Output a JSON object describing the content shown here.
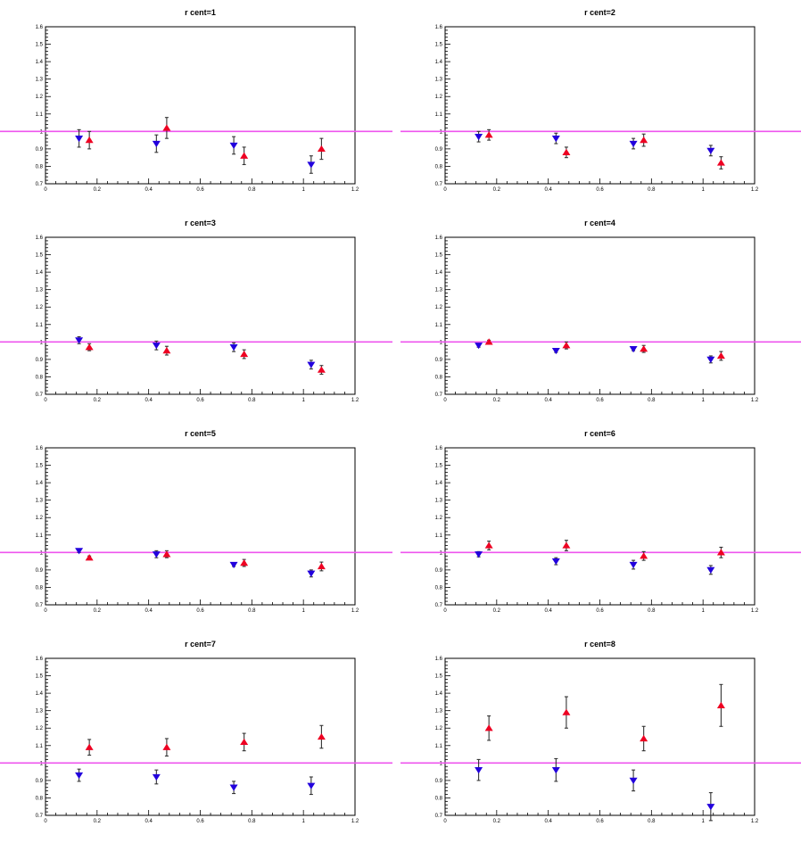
{
  "chart_data": [
    {
      "type": "scatter",
      "title": "r cent=1",
      "xlim": [
        0,
        1.2
      ],
      "ylim": [
        0.7,
        1.6
      ],
      "reference_y": 1.0,
      "xticks": [
        "0",
        "0.2",
        "0.4",
        "0.6",
        "0.8",
        "1",
        "1.2"
      ],
      "yticks": [
        "0.7",
        "0.8",
        "0.9",
        "1",
        "1.1",
        "1.2",
        "1.3",
        "1.4",
        "1.5",
        "1.6"
      ],
      "series": [
        {
          "marker": "down-triangle",
          "color": "#2200dd",
          "points": [
            {
              "x": 0.13,
              "y": 0.96,
              "err": 0.05
            },
            {
              "x": 0.43,
              "y": 0.93,
              "err": 0.05
            },
            {
              "x": 0.73,
              "y": 0.92,
              "err": 0.05
            },
            {
              "x": 1.03,
              "y": 0.81,
              "err": 0.05
            }
          ]
        },
        {
          "marker": "up-triangle",
          "color": "#ee0022",
          "points": [
            {
              "x": 0.17,
              "y": 0.95,
              "err": 0.05
            },
            {
              "x": 0.47,
              "y": 1.02,
              "err": 0.06
            },
            {
              "x": 0.77,
              "y": 0.86,
              "err": 0.05
            },
            {
              "x": 1.07,
              "y": 0.9,
              "err": 0.06
            }
          ]
        }
      ]
    },
    {
      "type": "scatter",
      "title": "r cent=2",
      "xlim": [
        0,
        1.2
      ],
      "ylim": [
        0.7,
        1.6
      ],
      "reference_y": 1.0,
      "xticks": [
        "0",
        "0.2",
        "0.4",
        "0.6",
        "0.8",
        "1",
        "1.2"
      ],
      "yticks": [
        "0.7",
        "0.8",
        "0.9",
        "1",
        "1.1",
        "1.2",
        "1.3",
        "1.4",
        "1.5",
        "1.6"
      ],
      "series": [
        {
          "marker": "down-triangle",
          "color": "#2200dd",
          "points": [
            {
              "x": 0.13,
              "y": 0.97,
              "err": 0.03
            },
            {
              "x": 0.43,
              "y": 0.96,
              "err": 0.03
            },
            {
              "x": 0.73,
              "y": 0.93,
              "err": 0.03
            },
            {
              "x": 1.03,
              "y": 0.89,
              "err": 0.03
            }
          ]
        },
        {
          "marker": "up-triangle",
          "color": "#ee0022",
          "points": [
            {
              "x": 0.17,
              "y": 0.98,
              "err": 0.03
            },
            {
              "x": 0.47,
              "y": 0.88,
              "err": 0.03
            },
            {
              "x": 0.77,
              "y": 0.95,
              "err": 0.035
            },
            {
              "x": 1.07,
              "y": 0.82,
              "err": 0.035
            }
          ]
        }
      ]
    },
    {
      "type": "scatter",
      "title": "r cent=3",
      "xlim": [
        0,
        1.2
      ],
      "ylim": [
        0.7,
        1.6
      ],
      "reference_y": 1.0,
      "xticks": [
        "0",
        "0.2",
        "0.4",
        "0.6",
        "0.8",
        "1",
        "1.2"
      ],
      "yticks": [
        "0.7",
        "0.8",
        "0.9",
        "1",
        "1.1",
        "1.2",
        "1.3",
        "1.4",
        "1.5",
        "1.6"
      ],
      "series": [
        {
          "marker": "down-triangle",
          "color": "#2200dd",
          "points": [
            {
              "x": 0.13,
              "y": 1.01,
              "err": 0.02
            },
            {
              "x": 0.43,
              "y": 0.98,
              "err": 0.025
            },
            {
              "x": 0.73,
              "y": 0.97,
              "err": 0.025
            },
            {
              "x": 1.03,
              "y": 0.87,
              "err": 0.025
            }
          ]
        },
        {
          "marker": "up-triangle",
          "color": "#ee0022",
          "points": [
            {
              "x": 0.17,
              "y": 0.97,
              "err": 0.02
            },
            {
              "x": 0.47,
              "y": 0.95,
              "err": 0.025
            },
            {
              "x": 0.77,
              "y": 0.93,
              "err": 0.025
            },
            {
              "x": 1.07,
              "y": 0.84,
              "err": 0.025
            }
          ]
        }
      ]
    },
    {
      "type": "scatter",
      "title": "r cent=4",
      "xlim": [
        0,
        1.2
      ],
      "ylim": [
        0.7,
        1.6
      ],
      "reference_y": 1.0,
      "xticks": [
        "0",
        "0.2",
        "0.4",
        "0.6",
        "0.8",
        "1",
        "1.2"
      ],
      "yticks": [
        "0.7",
        "0.8",
        "0.9",
        "1",
        "1.1",
        "1.2",
        "1.3",
        "1.4",
        "1.5",
        "1.6"
      ],
      "series": [
        {
          "marker": "down-triangle",
          "color": "#2200dd",
          "points": [
            {
              "x": 0.13,
              "y": 0.98,
              "err": 0.01
            },
            {
              "x": 0.43,
              "y": 0.95,
              "err": 0.01
            },
            {
              "x": 0.73,
              "y": 0.96,
              "err": 0.01
            },
            {
              "x": 1.03,
              "y": 0.9,
              "err": 0.02
            }
          ]
        },
        {
          "marker": "up-triangle",
          "color": "#ee0022",
          "points": [
            {
              "x": 0.17,
              "y": 1.0,
              "err": 0.01
            },
            {
              "x": 0.47,
              "y": 0.98,
              "err": 0.02
            },
            {
              "x": 0.77,
              "y": 0.96,
              "err": 0.02
            },
            {
              "x": 1.07,
              "y": 0.92,
              "err": 0.025
            }
          ]
        }
      ]
    },
    {
      "type": "scatter",
      "title": "r cent=5",
      "xlim": [
        0,
        1.2
      ],
      "ylim": [
        0.7,
        1.6
      ],
      "reference_y": 1.0,
      "xticks": [
        "0",
        "0.2",
        "0.4",
        "0.6",
        "0.8",
        "1",
        "1.2"
      ],
      "yticks": [
        "0.7",
        "0.8",
        "0.9",
        "1",
        "1.1",
        "1.2",
        "1.3",
        "1.4",
        "1.5",
        "1.6"
      ],
      "series": [
        {
          "marker": "down-triangle",
          "color": "#2200dd",
          "points": [
            {
              "x": 0.13,
              "y": 1.01,
              "err": 0.01
            },
            {
              "x": 0.43,
              "y": 0.99,
              "err": 0.02
            },
            {
              "x": 0.73,
              "y": 0.93,
              "err": 0.01
            },
            {
              "x": 1.03,
              "y": 0.88,
              "err": 0.02
            }
          ]
        },
        {
          "marker": "up-triangle",
          "color": "#ee0022",
          "points": [
            {
              "x": 0.17,
              "y": 0.97,
              "err": 0.01
            },
            {
              "x": 0.47,
              "y": 0.99,
              "err": 0.02
            },
            {
              "x": 0.77,
              "y": 0.94,
              "err": 0.02
            },
            {
              "x": 1.07,
              "y": 0.92,
              "err": 0.025
            }
          ]
        }
      ]
    },
    {
      "type": "scatter",
      "title": "r cent=6",
      "xlim": [
        0,
        1.2
      ],
      "ylim": [
        0.7,
        1.6
      ],
      "reference_y": 1.0,
      "xticks": [
        "0",
        "0.2",
        "0.4",
        "0.6",
        "0.8",
        "1",
        "1.2"
      ],
      "yticks": [
        "0.7",
        "0.8",
        "0.9",
        "1",
        "1.1",
        "1.2",
        "1.3",
        "1.4",
        "1.5",
        "1.6"
      ],
      "series": [
        {
          "marker": "down-triangle",
          "color": "#2200dd",
          "points": [
            {
              "x": 0.13,
              "y": 0.99,
              "err": 0.015
            },
            {
              "x": 0.43,
              "y": 0.95,
              "err": 0.02
            },
            {
              "x": 0.73,
              "y": 0.93,
              "err": 0.025
            },
            {
              "x": 1.03,
              "y": 0.9,
              "err": 0.025
            }
          ]
        },
        {
          "marker": "up-triangle",
          "color": "#ee0022",
          "points": [
            {
              "x": 0.17,
              "y": 1.04,
              "err": 0.025
            },
            {
              "x": 0.47,
              "y": 1.04,
              "err": 0.03
            },
            {
              "x": 0.77,
              "y": 0.98,
              "err": 0.025
            },
            {
              "x": 1.07,
              "y": 1.0,
              "err": 0.03
            }
          ]
        }
      ]
    },
    {
      "type": "scatter",
      "title": "r cent=7",
      "xlim": [
        0,
        1.2
      ],
      "ylim": [
        0.7,
        1.6
      ],
      "reference_y": 1.0,
      "xticks": [
        "0",
        "0.2",
        "0.4",
        "0.6",
        "0.8",
        "1",
        "1.2"
      ],
      "yticks": [
        "0.7",
        "0.8",
        "0.9",
        "1",
        "1.1",
        "1.2",
        "1.3",
        "1.4",
        "1.5",
        "1.6"
      ],
      "series": [
        {
          "marker": "down-triangle",
          "color": "#2200dd",
          "points": [
            {
              "x": 0.13,
              "y": 0.93,
              "err": 0.035
            },
            {
              "x": 0.43,
              "y": 0.92,
              "err": 0.04
            },
            {
              "x": 0.73,
              "y": 0.86,
              "err": 0.035
            },
            {
              "x": 1.03,
              "y": 0.87,
              "err": 0.05
            }
          ]
        },
        {
          "marker": "up-triangle",
          "color": "#ee0022",
          "points": [
            {
              "x": 0.17,
              "y": 1.09,
              "err": 0.045
            },
            {
              "x": 0.47,
              "y": 1.09,
              "err": 0.05
            },
            {
              "x": 0.77,
              "y": 1.12,
              "err": 0.05
            },
            {
              "x": 1.07,
              "y": 1.15,
              "err": 0.065
            }
          ]
        }
      ]
    },
    {
      "type": "scatter",
      "title": "r cent=8",
      "xlim": [
        0,
        1.2
      ],
      "ylim": [
        0.7,
        1.6
      ],
      "reference_y": 1.0,
      "xticks": [
        "0",
        "0.2",
        "0.4",
        "0.6",
        "0.8",
        "1",
        "1.2"
      ],
      "yticks": [
        "0.7",
        "0.8",
        "0.9",
        "1",
        "1.1",
        "1.2",
        "1.3",
        "1.4",
        "1.5",
        "1.6"
      ],
      "series": [
        {
          "marker": "down-triangle",
          "color": "#2200dd",
          "points": [
            {
              "x": 0.13,
              "y": 0.96,
              "err": 0.06
            },
            {
              "x": 0.43,
              "y": 0.96,
              "err": 0.065
            },
            {
              "x": 0.73,
              "y": 0.9,
              "err": 0.06
            },
            {
              "x": 1.03,
              "y": 0.75,
              "err": 0.08
            }
          ]
        },
        {
          "marker": "up-triangle",
          "color": "#ee0022",
          "points": [
            {
              "x": 0.17,
              "y": 1.2,
              "err": 0.07
            },
            {
              "x": 0.47,
              "y": 1.29,
              "err": 0.09
            },
            {
              "x": 0.77,
              "y": 1.14,
              "err": 0.07
            },
            {
              "x": 1.07,
              "y": 1.33,
              "err": 0.12
            }
          ]
        }
      ]
    }
  ]
}
